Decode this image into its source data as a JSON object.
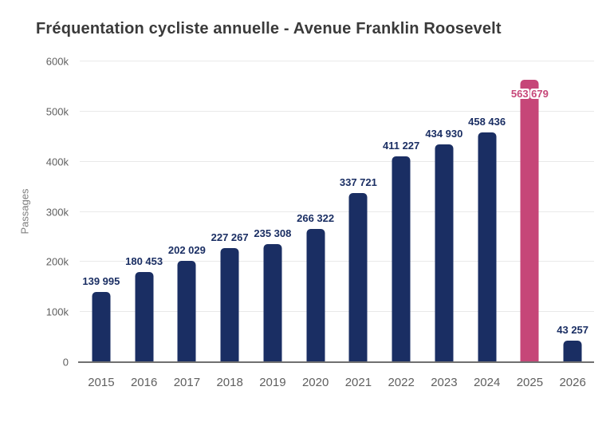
{
  "chart_data": {
    "type": "bar",
    "title": "Fréquentation cycliste annuelle - Avenue Franklin Roosevelt",
    "xlabel": "",
    "ylabel": "Passages",
    "categories": [
      "2015",
      "2016",
      "2017",
      "2018",
      "2019",
      "2020",
      "2021",
      "2022",
      "2023",
      "2024",
      "2025",
      "2026"
    ],
    "values": [
      139995,
      180453,
      202029,
      227267,
      235308,
      266322,
      337721,
      411227,
      434930,
      458436,
      563679,
      43257
    ],
    "value_labels": [
      "139 995",
      "180 453",
      "202 029",
      "227 267",
      "235 308",
      "266 322",
      "337 721",
      "411 227",
      "434 930",
      "458 436",
      "563 679",
      "43 257"
    ],
    "highlight_index": 10,
    "ylim": [
      0,
      600000
    ],
    "ytick_labels": [
      "0",
      "100k",
      "200k",
      "300k",
      "400k",
      "500k",
      "600k"
    ],
    "grid": true,
    "legend": "none",
    "colors": {
      "bar": "#1A2E63",
      "highlight": "#C64678",
      "title": "#3A3A3A",
      "axis_text": "#5F5F5F",
      "ylabel_text": "#7F7F7F",
      "gridline": "#E9E9E9",
      "axis_line": "#707070",
      "background": "#FFFFFF"
    }
  }
}
